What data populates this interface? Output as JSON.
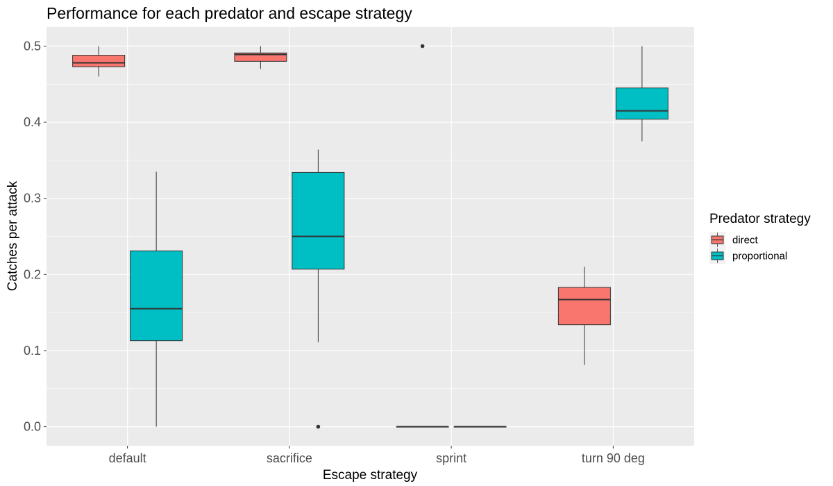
{
  "chart_data": {
    "type": "box",
    "title": "Performance for each predator and escape strategy",
    "xlabel": "Escape strategy",
    "ylabel": "Catches per attack",
    "categories": [
      "default",
      "sacrifice",
      "sprint",
      "turn 90 deg"
    ],
    "yticks": [
      "0.0",
      "0.1",
      "0.2",
      "0.3",
      "0.4",
      "0.5"
    ],
    "ylim": [
      -0.025,
      0.525
    ],
    "grid": true,
    "legend": {
      "title": "Predator strategy",
      "position": "right",
      "entries": [
        "direct",
        "proportional"
      ]
    },
    "series": [
      {
        "name": "direct",
        "color": "#F8766D",
        "boxes": [
          {
            "category": "default",
            "min": 0.46,
            "q1": 0.473,
            "median": 0.478,
            "q3": 0.488,
            "max": 0.5,
            "outliers": []
          },
          {
            "category": "sacrifice",
            "min": 0.47,
            "q1": 0.48,
            "median": 0.489,
            "q3": 0.491,
            "max": 0.5,
            "outliers": []
          },
          {
            "category": "sprint",
            "min": 0.0,
            "q1": 0.0,
            "median": 0.0,
            "q3": 0.0,
            "max": 0.0,
            "outliers": [
              0.5
            ]
          },
          {
            "category": "turn 90 deg",
            "min": 0.081,
            "q1": 0.134,
            "median": 0.167,
            "q3": 0.183,
            "max": 0.21,
            "outliers": []
          }
        ]
      },
      {
        "name": "proportional",
        "color": "#00BFC4",
        "boxes": [
          {
            "category": "default",
            "min": 0.0,
            "q1": 0.113,
            "median": 0.155,
            "q3": 0.231,
            "max": 0.335,
            "outliers": []
          },
          {
            "category": "sacrifice",
            "min": 0.111,
            "q1": 0.207,
            "median": 0.25,
            "q3": 0.334,
            "max": 0.364,
            "outliers": [
              0.0
            ]
          },
          {
            "category": "sprint",
            "min": 0.0,
            "q1": 0.0,
            "median": 0.0,
            "q3": 0.0,
            "max": 0.0,
            "outliers": []
          },
          {
            "category": "turn 90 deg",
            "min": 0.375,
            "q1": 0.404,
            "median": 0.415,
            "q3": 0.445,
            "max": 0.5,
            "outliers": []
          }
        ]
      }
    ]
  }
}
